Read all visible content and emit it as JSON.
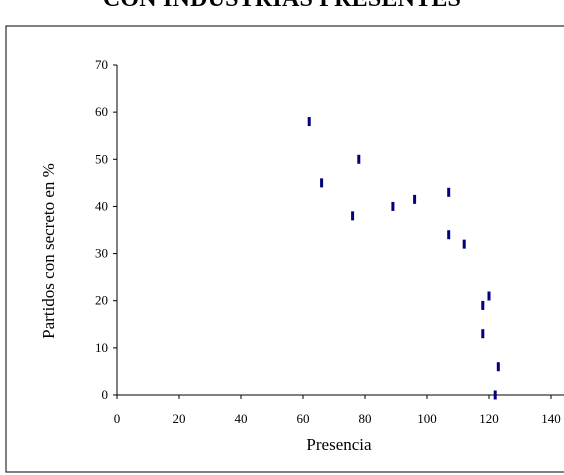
{
  "chart_data": {
    "type": "scatter",
    "title": "CON INDUSTRIAS PRESENTES",
    "xlabel": "Presencia",
    "ylabel": "Partidos con secreto en %",
    "xlim": [
      0,
      140
    ],
    "ylim": [
      0,
      70
    ],
    "x_ticks": [
      "0",
      "20",
      "40",
      "60",
      "80",
      "100",
      "120",
      "140"
    ],
    "y_ticks": [
      "0",
      "10",
      "20",
      "30",
      "40",
      "50",
      "60",
      "70"
    ],
    "grid": false,
    "legend": "none",
    "marker_color": "#000080",
    "points": [
      {
        "x": 62,
        "y": 58
      },
      {
        "x": 66,
        "y": 45
      },
      {
        "x": 76,
        "y": 38
      },
      {
        "x": 78,
        "y": 50
      },
      {
        "x": 89,
        "y": 40
      },
      {
        "x": 96,
        "y": 41.5
      },
      {
        "x": 107,
        "y": 43
      },
      {
        "x": 107,
        "y": 34
      },
      {
        "x": 112,
        "y": 32
      },
      {
        "x": 118,
        "y": 19
      },
      {
        "x": 118,
        "y": 13
      },
      {
        "x": 120,
        "y": 21
      },
      {
        "x": 122,
        "y": 0
      },
      {
        "x": 123,
        "y": 6
      }
    ]
  }
}
